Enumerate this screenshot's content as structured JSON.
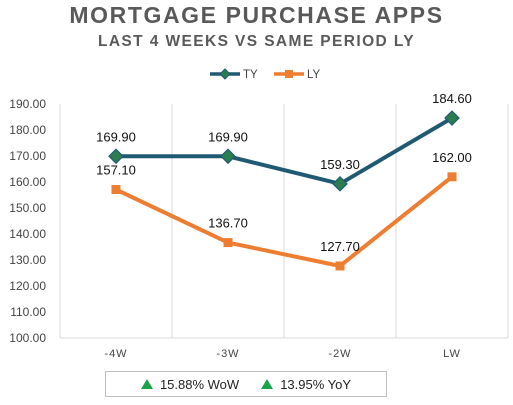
{
  "title": "MORTGAGE PURCHASE APPS",
  "subtitle": "LAST 4 WEEKS VS SAME PERIOD LY",
  "colors": {
    "ty": "#1f5a72",
    "ly": "#ed7d31",
    "up": "#1aa34a",
    "grid": "#d9d9d9"
  },
  "chart_data": {
    "type": "line",
    "categories": [
      "-4W",
      "-3W",
      "-2W",
      "LW"
    ],
    "series": [
      {
        "name": "TY",
        "values": [
          169.9,
          169.9,
          159.3,
          184.6
        ],
        "labels": [
          "169.90",
          "169.90",
          "159.30",
          "184.60"
        ],
        "marker": "diamond"
      },
      {
        "name": "LY",
        "values": [
          157.1,
          136.7,
          127.7,
          162.0
        ],
        "labels": [
          "157.10",
          "136.70",
          "127.70",
          "162.00"
        ],
        "marker": "square"
      }
    ],
    "ylim": [
      100,
      190
    ],
    "yticks": [
      100,
      110,
      120,
      130,
      140,
      150,
      160,
      170,
      180,
      190
    ],
    "ytick_labels": [
      "100.00",
      "110.00",
      "120.00",
      "130.00",
      "140.00",
      "150.00",
      "160.00",
      "170.00",
      "180.00",
      "190.00"
    ],
    "grid": "vertical",
    "legend_position": "top"
  },
  "footer": {
    "wow": "15.88% WoW",
    "yoy": "13.95% YoY"
  }
}
